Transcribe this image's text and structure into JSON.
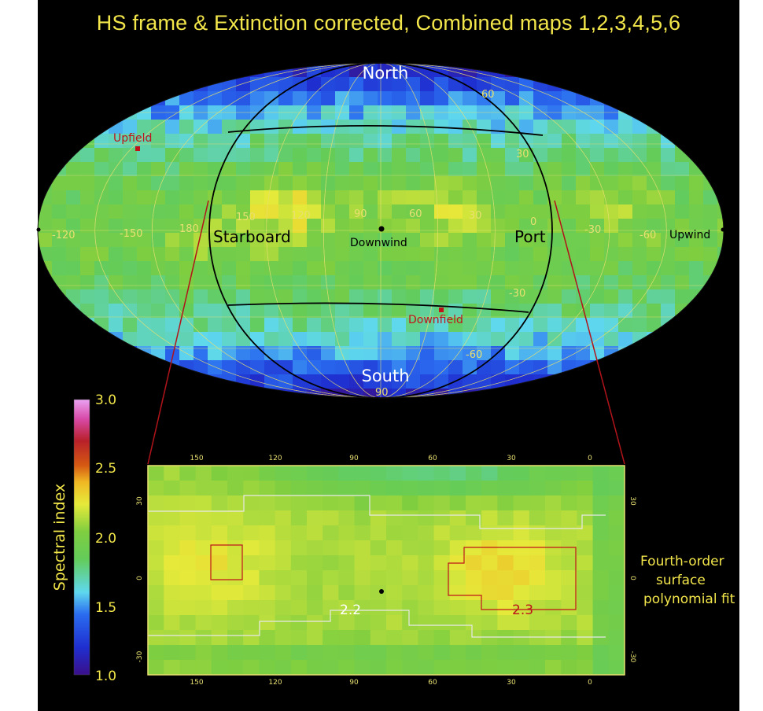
{
  "title": "HS frame & Extinction corrected, Combined maps 1,2,3,4,5,6",
  "colors": {
    "title": "#f2e64a",
    "gridline": "#e8e070",
    "red_label": "#c0141a",
    "background": "#000000"
  },
  "sky_map": {
    "labels": {
      "north": "North",
      "south": "South",
      "starboard": "Starboard",
      "port": "Port",
      "downwind": "Downwind",
      "upwind": "Upwind",
      "upfield": "Upfield",
      "downfield": "Downfield"
    },
    "longitude_ticks": [
      "-120",
      "-150",
      "180",
      "150",
      "120",
      "90",
      "60",
      "30",
      "0",
      "-30",
      "-60"
    ],
    "latitude_ticks": [
      "60",
      "30",
      "-30",
      "-60",
      "90"
    ]
  },
  "colorbar": {
    "label": "Spectral index",
    "ticks": [
      "3.0",
      "2.5",
      "2.0",
      "1.5",
      "1.0"
    ],
    "range": [
      1.0,
      3.0
    ]
  },
  "inset": {
    "x_ticks": [
      "150",
      "120",
      "90",
      "60",
      "30",
      "0"
    ],
    "y_ticks": [
      "30",
      "0",
      "-30"
    ],
    "contours": {
      "c22": "2.2",
      "c23": "2.3"
    },
    "caption": [
      "Fourth-order",
      "surface",
      "polynomial fit"
    ]
  }
}
